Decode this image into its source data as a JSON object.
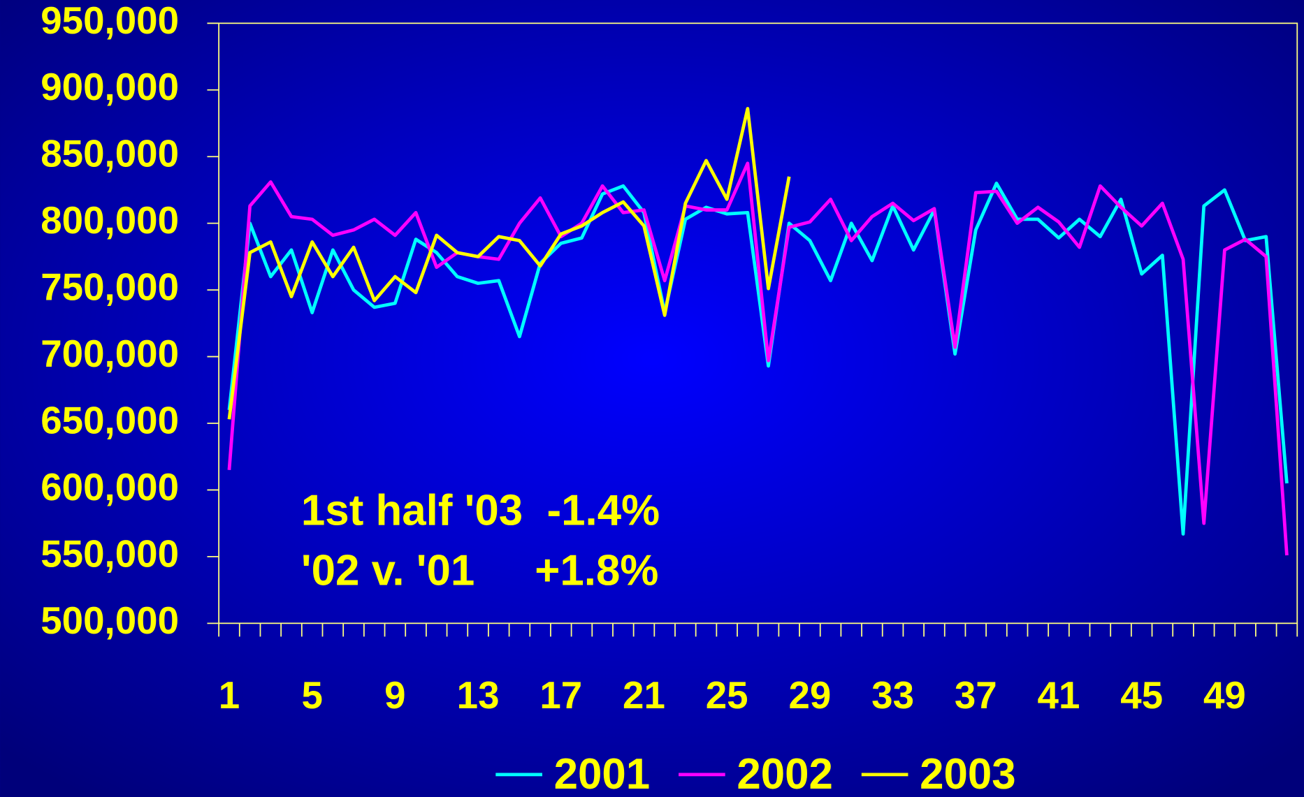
{
  "chart_data": {
    "type": "line",
    "categories": [
      "1",
      null,
      null,
      null,
      "5",
      null,
      null,
      null,
      "9",
      null,
      null,
      null,
      "13",
      null,
      null,
      null,
      "17",
      null,
      null,
      null,
      "21",
      null,
      null,
      null,
      "25",
      null,
      null,
      null,
      "29",
      null,
      null,
      null,
      "33",
      null,
      null,
      null,
      "37",
      null,
      null,
      null,
      "41",
      null,
      null,
      null,
      "45",
      null,
      null,
      null,
      "49",
      null,
      null,
      null
    ],
    "series": [
      {
        "name": "2001",
        "color": "#00ffff",
        "values": [
          660000,
          800000,
          760000,
          780000,
          733000,
          780000,
          750000,
          737000,
          740000,
          788000,
          778000,
          760000,
          755000,
          757000,
          715000,
          770000,
          785000,
          789000,
          822000,
          828000,
          808000,
          733000,
          803000,
          812000,
          807000,
          808000,
          693000,
          800000,
          787000,
          757000,
          800000,
          772000,
          813000,
          780000,
          810000,
          702000,
          795000,
          830000,
          803000,
          803000,
          789000,
          803000,
          790000,
          818000,
          762000,
          776000,
          567000,
          813000,
          825000,
          787000,
          790000,
          605000
        ]
      },
      {
        "name": "2002",
        "color": "#ff00ff",
        "values": [
          615000,
          813000,
          831000,
          805000,
          803000,
          791000,
          795000,
          803000,
          791000,
          808000,
          767000,
          778000,
          775000,
          773000,
          800000,
          819000,
          790000,
          800000,
          828000,
          808000,
          810000,
          757000,
          813000,
          810000,
          810000,
          845000,
          697000,
          797000,
          801000,
          818000,
          787000,
          805000,
          815000,
          802000,
          811000,
          707000,
          823000,
          824000,
          800000,
          812000,
          801000,
          782000,
          828000,
          812000,
          798000,
          815000,
          773000,
          575000,
          780000,
          788000,
          775000,
          551000
        ]
      },
      {
        "name": "2003",
        "color": "#ffff00",
        "values": [
          653000,
          778000,
          786000,
          745000,
          786000,
          760000,
          782000,
          742000,
          760000,
          748000,
          791000,
          778000,
          775000,
          790000,
          787000,
          768000,
          792000,
          798000,
          808000,
          816000,
          798000,
          731000,
          815000,
          847000,
          818000,
          886000,
          751000,
          835000,
          null,
          null,
          null,
          null,
          null,
          null,
          null,
          null,
          null,
          null,
          null,
          null,
          null,
          null,
          null,
          null,
          null,
          null,
          null,
          null,
          null,
          null,
          null,
          null
        ]
      }
    ],
    "ylim": [
      500000,
      950000
    ],
    "yticks": [
      {
        "value": 500000,
        "label": "500,000"
      },
      {
        "value": 550000,
        "label": "550,000"
      },
      {
        "value": 600000,
        "label": "600,000"
      },
      {
        "value": 650000,
        "label": "650,000"
      },
      {
        "value": 700000,
        "label": "700,000"
      },
      {
        "value": 750000,
        "label": "750,000"
      },
      {
        "value": 800000,
        "label": "800,000"
      },
      {
        "value": 850000,
        "label": "850,000"
      },
      {
        "value": 900000,
        "label": "900,000"
      },
      {
        "value": 950000,
        "label": "950,000"
      }
    ],
    "annotations": [
      "1st half '03  -1.4%",
      "'02 v. '01     +1.8%"
    ],
    "legend": "bottom",
    "grid": false
  }
}
